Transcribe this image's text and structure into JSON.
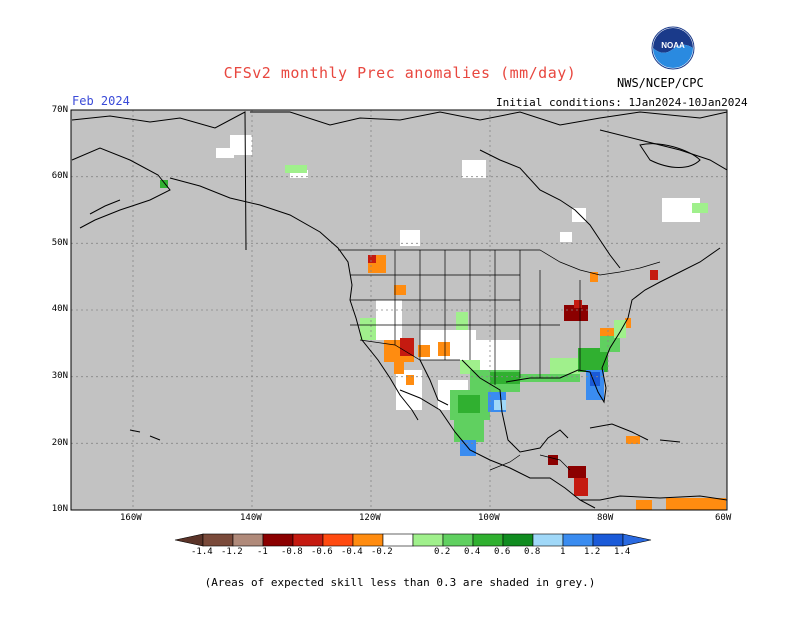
{
  "header": {
    "title": "CFSv2 monthly Prec anomalies (mm/day)",
    "org": "NWS/NCEP/CPC",
    "month": "Feb 2024",
    "initial_conditions": "Initial conditions: 1Jan2024-10Jan2024",
    "logo_text": "NOAA"
  },
  "axes": {
    "lat_labels": [
      "70N",
      "60N",
      "50N",
      "40N",
      "30N",
      "20N",
      "10N"
    ],
    "lon_labels": [
      "160W",
      "140W",
      "120W",
      "100W",
      "80W",
      "60W"
    ]
  },
  "colorbar": {
    "labels": [
      "-1.4",
      "-1.2",
      "-1",
      "-0.8",
      "-0.6",
      "-0.4",
      "-0.2",
      "0.2",
      "0.4",
      "0.6",
      "0.8",
      "1",
      "1.2",
      "1.4"
    ],
    "colors": [
      "#7a4a3a",
      "#b08a7a",
      "#8b0000",
      "#c51a10",
      "#ff4a10",
      "#ff8c10",
      "#ffffff",
      "#a0f08c",
      "#60d060",
      "#30b030",
      "#108c20",
      "#a0d8f8",
      "#3a8cf0",
      "#1a5ad8"
    ]
  },
  "footer": {
    "note": "(Areas of expected skill less than 0.3 are shaded in grey.)"
  },
  "colors": {
    "skill_mask": "#c2c2c2",
    "title": "#e8473f",
    "month": "#3b4bd8"
  }
}
